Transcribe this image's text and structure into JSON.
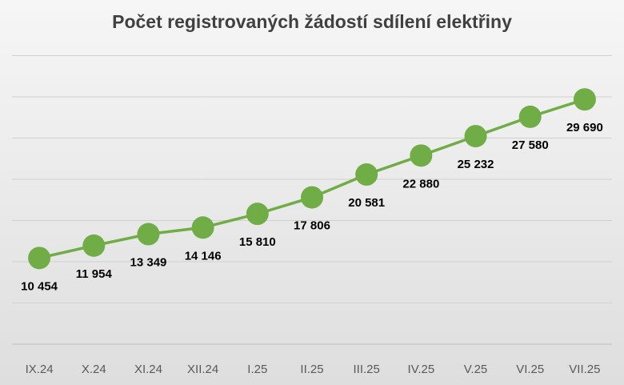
{
  "chart_data": {
    "type": "line",
    "title": "Počet registrovaných žádostí sdílení elektřiny",
    "xlabel": "",
    "ylabel": "",
    "categories": [
      "IX.24",
      "X.24",
      "XI.24",
      "XII.24",
      "I.25",
      "II.25",
      "III.25",
      "IV.25",
      "V.25",
      "VI.25",
      "VII.25"
    ],
    "series": [
      {
        "values": [
          10454,
          11954,
          13349,
          14146,
          15810,
          17806,
          20581,
          22880,
          25232,
          27580,
          29690
        ],
        "labels": [
          "10 454",
          "11 954",
          "13 349",
          "14 146",
          "15 810",
          "17 806",
          "20 581",
          "22 880",
          "25 232",
          "27 580",
          "29 690"
        ],
        "color": "#70AD47"
      }
    ],
    "ylim": [
      0,
      35000
    ],
    "grid": true,
    "legend": "none"
  }
}
